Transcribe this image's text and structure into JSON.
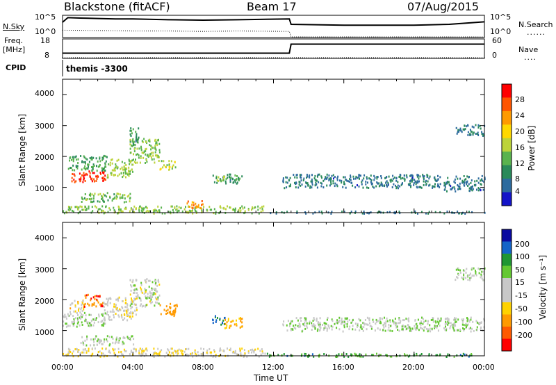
{
  "header": {
    "station": "Blackstone (fitACF)",
    "beam": "Beam 17",
    "date": "07/Aug/2015"
  },
  "panels": {
    "nsky": {
      "label": "N.Sky",
      "ticks_left": [
        "10^5",
        "10^0"
      ],
      "ticks_right": [
        "10^5",
        "10^0"
      ],
      "right_label": "N.Search"
    },
    "freq": {
      "label_top": "Freq.",
      "label_unit": "[MHz]",
      "ticks_left": [
        "18",
        "8"
      ],
      "ticks_right": [
        "60",
        "0"
      ],
      "right_label": "Nave"
    },
    "cpid": {
      "label": "CPID",
      "text": "themis  -3300"
    }
  },
  "colorbars": {
    "power": {
      "label": "Power [dB]",
      "ticks": [
        "28",
        "24",
        "20",
        "16",
        "12",
        "8",
        "4"
      ],
      "colors": [
        "#ff0000",
        "#ff5500",
        "#ff9a00",
        "#ffd800",
        "#bcd33a",
        "#5ab34e",
        "#2a8a5a",
        "#2d6b9e",
        "#1414c8"
      ]
    },
    "velocity": {
      "label": "Velocity [m s⁻¹]",
      "ticks": [
        "200",
        "100",
        "50",
        "15",
        "-15",
        "-50",
        "-100",
        "-200"
      ],
      "colors": [
        "#0a0aa0",
        "#1464c8",
        "#1f9632",
        "#64c832",
        "#c8c8c8",
        "#c8c8c8",
        "#ffd200",
        "#ff9a00",
        "#ff5a00",
        "#ff0000"
      ]
    }
  },
  "axes": {
    "ylabel": "Slant Range [km]",
    "yticks": [
      "4000",
      "3000",
      "2000",
      "1000"
    ],
    "xticks": [
      "00:00",
      "04:00",
      "08:00",
      "12:00",
      "16:00",
      "20:00",
      "00:00"
    ],
    "xlabel": "Time UT"
  },
  "chart_data": [
    {
      "type": "heatmap",
      "name": "Power",
      "x_unit": "hours UT",
      "y_unit": "km",
      "xlim": [
        0,
        24
      ],
      "ylim": [
        180,
        4500
      ],
      "clim": [
        0,
        30
      ],
      "regions": [
        {
          "t0": 0.5,
          "t1": 2.5,
          "r0": 1200,
          "r1": 1550,
          "v": 27
        },
        {
          "t0": 0.3,
          "t1": 2.5,
          "r0": 1550,
          "r1": 2050,
          "v": 10
        },
        {
          "t0": 2.5,
          "t1": 4.0,
          "r0": 1350,
          "r1": 1950,
          "v": 14
        },
        {
          "t0": 3.8,
          "t1": 5.5,
          "r0": 1800,
          "r1": 2600,
          "v": 13
        },
        {
          "t0": 3.8,
          "t1": 4.3,
          "r0": 2400,
          "r1": 3000,
          "v": 9
        },
        {
          "t0": 5.5,
          "t1": 6.5,
          "r0": 1600,
          "r1": 1900,
          "v": 15
        },
        {
          "t0": 8.5,
          "t1": 10.2,
          "r0": 1150,
          "r1": 1450,
          "v": 9
        },
        {
          "t0": 8.6,
          "t1": 9.2,
          "r0": 1200,
          "r1": 1400,
          "v": 14
        },
        {
          "t0": 12.5,
          "t1": 21.5,
          "r0": 1000,
          "r1": 1450,
          "v": 6
        },
        {
          "t0": 21.6,
          "t1": 24.0,
          "r0": 900,
          "r1": 1400,
          "v": 6
        },
        {
          "t0": 22.3,
          "t1": 24.0,
          "r0": 2700,
          "r1": 3050,
          "v": 6
        },
        {
          "t0": 0.0,
          "t1": 11.5,
          "r0": 180,
          "r1": 420,
          "v": 13
        },
        {
          "t0": 11.5,
          "t1": 24.0,
          "r0": 180,
          "r1": 250,
          "v": 6
        },
        {
          "t0": 7.0,
          "t1": 8.0,
          "r0": 350,
          "r1": 600,
          "v": 22
        },
        {
          "t0": 1.0,
          "t1": 4.0,
          "r0": 550,
          "r1": 850,
          "v": 12
        }
      ]
    },
    {
      "type": "heatmap",
      "name": "Velocity",
      "x_unit": "hours UT",
      "y_unit": "km",
      "xlim": [
        0,
        24
      ],
      "ylim": [
        180,
        4500
      ],
      "clim": [
        -250,
        250
      ],
      "regions": [
        {
          "t0": 0.0,
          "t1": 2.5,
          "r0": 1150,
          "r1": 1600,
          "v": 0
        },
        {
          "t0": 0.3,
          "t1": 1.2,
          "r0": 1600,
          "r1": 2000,
          "v": -60
        },
        {
          "t0": 1.2,
          "t1": 2.3,
          "r0": 1800,
          "r1": 2200,
          "v": -180
        },
        {
          "t0": 2.3,
          "t1": 4.2,
          "r0": 1350,
          "r1": 2100,
          "v": -30
        },
        {
          "t0": 3.8,
          "t1": 5.5,
          "r0": 1800,
          "r1": 2700,
          "v": -10
        },
        {
          "t0": 5.5,
          "t1": 6.5,
          "r0": 1500,
          "r1": 1900,
          "v": -150
        },
        {
          "t0": 8.5,
          "t1": 9.2,
          "r0": 1200,
          "r1": 1500,
          "v": 110
        },
        {
          "t0": 9.2,
          "t1": 10.2,
          "r0": 1100,
          "r1": 1450,
          "v": -120
        },
        {
          "t0": 12.5,
          "t1": 24.0,
          "r0": 1000,
          "r1": 1450,
          "v": 0
        },
        {
          "t0": 22.3,
          "t1": 24.0,
          "r0": 2650,
          "r1": 3050,
          "v": 0
        },
        {
          "t0": 0.0,
          "t1": 11.5,
          "r0": 180,
          "r1": 450,
          "v": -40
        },
        {
          "t0": 11.5,
          "t1": 24.0,
          "r0": 180,
          "r1": 280,
          "v": 60
        },
        {
          "t0": 1.0,
          "t1": 4.0,
          "r0": 550,
          "r1": 850,
          "v": 0
        }
      ]
    },
    {
      "type": "line",
      "name": "N.Sky",
      "x": [
        0,
        0.3,
        1,
        2,
        3,
        4,
        6,
        8,
        10,
        12.9,
        13,
        16,
        20,
        22,
        24
      ],
      "y": [
        3.5,
        4.6,
        4.5,
        4.4,
        4.3,
        4.3,
        4.1,
        4.0,
        4.1,
        4.3,
        3.0,
        2.8,
        2.8,
        3.0,
        3.6
      ],
      "ylim": [
        0,
        5
      ]
    },
    {
      "type": "line",
      "name": "N.Search",
      "x": [
        0,
        2,
        4,
        6,
        8,
        10,
        12.9,
        13,
        24
      ],
      "y": [
        1.6,
        1.5,
        1.4,
        1.4,
        1.3,
        1.4,
        1.3,
        0.0,
        0.0
      ],
      "ylim": [
        0,
        5
      ]
    },
    {
      "type": "line",
      "name": "Freq.",
      "x": [
        0,
        12.9,
        13,
        24
      ],
      "y": [
        10.5,
        10.5,
        15.5,
        15.5
      ],
      "ylim": [
        8,
        18
      ]
    },
    {
      "type": "line",
      "name": "Nave",
      "x": [
        0,
        24
      ],
      "y": [
        0,
        0
      ],
      "ylim": [
        0,
        60
      ]
    }
  ]
}
